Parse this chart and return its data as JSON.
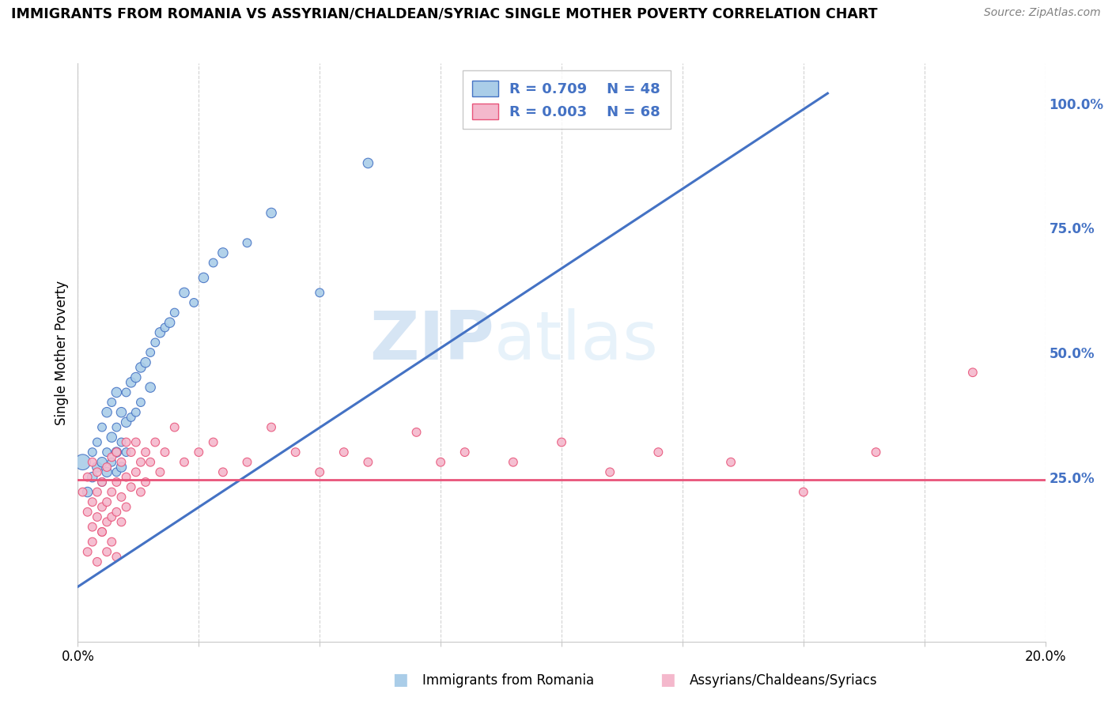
{
  "title": "IMMIGRANTS FROM ROMANIA VS ASSYRIAN/CHALDEAN/SYRIAC SINGLE MOTHER POVERTY CORRELATION CHART",
  "source": "Source: ZipAtlas.com",
  "ylabel": "Single Mother Poverty",
  "right_yticks": [
    "25.0%",
    "50.0%",
    "75.0%",
    "100.0%"
  ],
  "right_ytick_vals": [
    0.25,
    0.5,
    0.75,
    1.0
  ],
  "xlim": [
    0.0,
    0.2
  ],
  "ylim": [
    -0.08,
    1.08
  ],
  "legend_R1": "R = 0.709",
  "legend_N1": "N = 48",
  "legend_R2": "R = 0.003",
  "legend_N2": "N = 68",
  "legend_label1": "Immigrants from Romania",
  "legend_label2": "Assyrians/Chaldeans/Syriacs",
  "color_blue": "#aacde8",
  "color_pink": "#f4b8cc",
  "color_blue_line": "#4472c4",
  "color_pink_line": "#e8547a",
  "watermark_zip": "ZIP",
  "watermark_atlas": "atlas",
  "blue_scatter_x": [
    0.001,
    0.002,
    0.003,
    0.003,
    0.004,
    0.004,
    0.005,
    0.005,
    0.005,
    0.006,
    0.006,
    0.006,
    0.007,
    0.007,
    0.007,
    0.008,
    0.008,
    0.008,
    0.008,
    0.009,
    0.009,
    0.009,
    0.01,
    0.01,
    0.01,
    0.011,
    0.011,
    0.012,
    0.012,
    0.013,
    0.013,
    0.014,
    0.015,
    0.015,
    0.016,
    0.017,
    0.018,
    0.019,
    0.02,
    0.022,
    0.024,
    0.026,
    0.028,
    0.03,
    0.035,
    0.04,
    0.05,
    0.06
  ],
  "blue_scatter_y": [
    0.28,
    0.22,
    0.3,
    0.25,
    0.32,
    0.27,
    0.35,
    0.28,
    0.24,
    0.38,
    0.3,
    0.26,
    0.4,
    0.33,
    0.28,
    0.42,
    0.35,
    0.3,
    0.26,
    0.38,
    0.32,
    0.27,
    0.42,
    0.36,
    0.3,
    0.44,
    0.37,
    0.45,
    0.38,
    0.47,
    0.4,
    0.48,
    0.5,
    0.43,
    0.52,
    0.54,
    0.55,
    0.56,
    0.58,
    0.62,
    0.6,
    0.65,
    0.68,
    0.7,
    0.72,
    0.78,
    0.62,
    0.88
  ],
  "blue_scatter_sizes": [
    200,
    80,
    60,
    80,
    60,
    80,
    60,
    80,
    60,
    80,
    60,
    80,
    60,
    80,
    60,
    80,
    60,
    80,
    60,
    80,
    60,
    80,
    60,
    80,
    60,
    80,
    60,
    80,
    60,
    80,
    60,
    80,
    60,
    80,
    60,
    80,
    60,
    80,
    60,
    80,
    60,
    80,
    60,
    80,
    60,
    80,
    60,
    80
  ],
  "pink_scatter_x": [
    0.001,
    0.002,
    0.002,
    0.003,
    0.003,
    0.003,
    0.004,
    0.004,
    0.004,
    0.005,
    0.005,
    0.005,
    0.006,
    0.006,
    0.006,
    0.007,
    0.007,
    0.007,
    0.008,
    0.008,
    0.008,
    0.009,
    0.009,
    0.009,
    0.01,
    0.01,
    0.01,
    0.011,
    0.011,
    0.012,
    0.012,
    0.013,
    0.013,
    0.014,
    0.014,
    0.015,
    0.016,
    0.017,
    0.018,
    0.02,
    0.022,
    0.025,
    0.028,
    0.03,
    0.035,
    0.04,
    0.045,
    0.05,
    0.055,
    0.06,
    0.07,
    0.075,
    0.08,
    0.09,
    0.1,
    0.11,
    0.12,
    0.135,
    0.15,
    0.165,
    0.002,
    0.003,
    0.004,
    0.005,
    0.006,
    0.007,
    0.008,
    0.185
  ],
  "pink_scatter_y": [
    0.22,
    0.18,
    0.25,
    0.2,
    0.15,
    0.28,
    0.22,
    0.17,
    0.26,
    0.19,
    0.24,
    0.14,
    0.27,
    0.2,
    0.16,
    0.29,
    0.22,
    0.17,
    0.3,
    0.24,
    0.18,
    0.28,
    0.21,
    0.16,
    0.32,
    0.25,
    0.19,
    0.3,
    0.23,
    0.32,
    0.26,
    0.28,
    0.22,
    0.3,
    0.24,
    0.28,
    0.32,
    0.26,
    0.3,
    0.35,
    0.28,
    0.3,
    0.32,
    0.26,
    0.28,
    0.35,
    0.3,
    0.26,
    0.3,
    0.28,
    0.34,
    0.28,
    0.3,
    0.28,
    0.32,
    0.26,
    0.3,
    0.28,
    0.22,
    0.3,
    0.1,
    0.12,
    0.08,
    0.14,
    0.1,
    0.12,
    0.09,
    0.46
  ],
  "pink_scatter_sizes": [
    60,
    60,
    60,
    60,
    60,
    60,
    60,
    60,
    60,
    60,
    60,
    60,
    60,
    60,
    60,
    60,
    60,
    60,
    60,
    60,
    60,
    60,
    60,
    60,
    60,
    60,
    60,
    60,
    60,
    60,
    60,
    60,
    60,
    60,
    60,
    60,
    60,
    60,
    60,
    60,
    60,
    60,
    60,
    60,
    60,
    60,
    60,
    60,
    60,
    60,
    60,
    60,
    60,
    60,
    60,
    60,
    60,
    60,
    60,
    60,
    60,
    60,
    60,
    60,
    60,
    60,
    60,
    60
  ],
  "blue_trend_x": [
    0.0,
    0.155
  ],
  "blue_trend_y": [
    0.03,
    1.02
  ],
  "pink_trend_y": 0.245,
  "grid_color": "#c8c8c8",
  "background_color": "#ffffff"
}
